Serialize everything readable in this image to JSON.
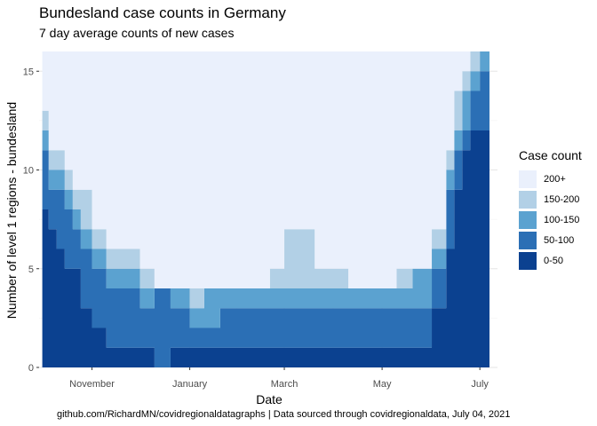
{
  "title": "Bundesland case counts in Germany",
  "subtitle": "7 day average counts of new cases",
  "caption": "github.com/RichardMN/covidregionaldatagraphs | Data sourced through covidregionaldata, July 04, 2021",
  "legend": {
    "title": "Case count",
    "items": [
      {
        "label": "200+",
        "color": "#eaf0fc"
      },
      {
        "label": "150-200",
        "color": "#b2d0e6"
      },
      {
        "label": "100-150",
        "color": "#5ba2d0"
      },
      {
        "label": "50-100",
        "color": "#2b6fb5"
      },
      {
        "label": "0-50",
        "color": "#0b4190"
      }
    ]
  },
  "chart_data": {
    "type": "area",
    "stacked": true,
    "xlabel": "Date",
    "ylabel": "Number of level 1 regions - bundesland",
    "x_tick_labels": [
      "November",
      "January",
      "March",
      "May",
      "July"
    ],
    "x_tick_dates": [
      "2020-11-01",
      "2021-01-01",
      "2021-03-01",
      "2021-05-01",
      "2021-07-01"
    ],
    "y_ticks": [
      0,
      5,
      10,
      15
    ],
    "xlim": [
      "2020-09-29",
      "2021-07-12"
    ],
    "ylim": [
      0,
      16
    ],
    "grid": true,
    "legend_position": "right",
    "x": [
      "2020-10-01",
      "2020-10-05",
      "2020-10-10",
      "2020-10-15",
      "2020-10-20",
      "2020-10-25",
      "2020-11-01",
      "2020-11-10",
      "2020-11-20",
      "2020-12-01",
      "2020-12-10",
      "2020-12-20",
      "2021-01-01",
      "2021-01-10",
      "2021-01-20",
      "2021-02-01",
      "2021-02-10",
      "2021-02-20",
      "2021-03-01",
      "2021-03-10",
      "2021-03-20",
      "2021-04-01",
      "2021-04-10",
      "2021-04-20",
      "2021-05-01",
      "2021-05-10",
      "2021-05-20",
      "2021-06-01",
      "2021-06-10",
      "2021-06-15",
      "2021-06-20",
      "2021-06-25",
      "2021-07-01"
    ],
    "series": [
      {
        "name": "0-50",
        "values": [
          8,
          7,
          6,
          5,
          5,
          3,
          2,
          1,
          1,
          1,
          0,
          1,
          1,
          1,
          1,
          1,
          1,
          1,
          1,
          1,
          1,
          1,
          1,
          1,
          1,
          1,
          1,
          3,
          6,
          9,
          11,
          12,
          12
        ]
      },
      {
        "name": "50-100",
        "values": [
          3,
          2,
          3,
          3,
          2,
          3,
          3,
          3,
          3,
          2,
          4,
          2,
          1,
          1,
          2,
          2,
          2,
          2,
          2,
          2,
          2,
          2,
          2,
          2,
          2,
          2,
          2,
          2,
          3,
          2,
          1,
          2,
          3
        ]
      },
      {
        "name": "100-150",
        "values": [
          1,
          1,
          1,
          1,
          1,
          1,
          1,
          1,
          1,
          1,
          0,
          1,
          1,
          2,
          1,
          1,
          1,
          1,
          1,
          1,
          1,
          1,
          1,
          1,
          1,
          1,
          2,
          1,
          1,
          1,
          2,
          1,
          1
        ]
      },
      {
        "name": "150-200",
        "values": [
          1,
          1,
          1,
          1,
          1,
          2,
          1,
          1,
          1,
          1,
          0,
          0,
          1,
          0,
          0,
          0,
          0,
          1,
          3,
          3,
          1,
          1,
          0,
          0,
          0,
          1,
          0,
          1,
          1,
          2,
          1,
          1,
          0
        ]
      },
      {
        "name": "200+",
        "values": [
          3,
          5,
          5,
          6,
          7,
          7,
          9,
          10,
          10,
          11,
          12,
          12,
          12,
          12,
          12,
          12,
          12,
          11,
          9,
          9,
          11,
          11,
          12,
          12,
          12,
          11,
          11,
          9,
          5,
          2,
          1,
          0,
          0
        ]
      }
    ]
  }
}
